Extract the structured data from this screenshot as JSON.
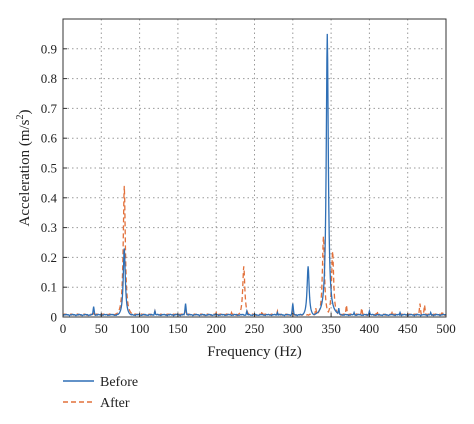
{
  "chart_data": {
    "type": "line",
    "xlabel": "Frequency (Hz)",
    "ylabel": "Acceleration (m/s",
    "ylabel_sup": "2",
    "ylabel_close": ")",
    "xlim": [
      0,
      500
    ],
    "ylim": [
      0,
      1.0
    ],
    "x_ticks": [
      0,
      50,
      100,
      150,
      200,
      250,
      300,
      350,
      400,
      450,
      500
    ],
    "y_ticks": [
      0,
      0.1,
      0.2,
      0.3,
      0.4,
      0.5,
      0.6,
      0.7,
      0.8,
      0.9
    ],
    "y_tick_labels": [
      "0",
      "0.1",
      "0.2",
      "0.3",
      "0.4",
      "0.5",
      "0.6",
      "0.7",
      "0.8",
      "0.9"
    ],
    "grid": true,
    "legend_position": "bottom-left, below plot",
    "series": [
      {
        "name": "Before",
        "color": "#2f6fb5",
        "style": "solid",
        "peaks": [
          {
            "f": 40,
            "a": 0.035
          },
          {
            "f": 80,
            "a": 0.23
          },
          {
            "f": 120,
            "a": 0.02
          },
          {
            "f": 160,
            "a": 0.045
          },
          {
            "f": 240,
            "a": 0.02
          },
          {
            "f": 280,
            "a": 0.015
          },
          {
            "f": 300,
            "a": 0.045
          },
          {
            "f": 320,
            "a": 0.17
          },
          {
            "f": 340,
            "a": 0.05
          },
          {
            "f": 345,
            "a": 0.95
          },
          {
            "f": 360,
            "a": 0.03
          },
          {
            "f": 380,
            "a": 0.015
          },
          {
            "f": 400,
            "a": 0.02
          },
          {
            "f": 440,
            "a": 0.015
          },
          {
            "f": 480,
            "a": 0.015
          }
        ]
      },
      {
        "name": "After",
        "color": "#e2703a",
        "style": "dashed",
        "peaks": [
          {
            "f": 40,
            "a": 0.02
          },
          {
            "f": 80,
            "a": 0.44
          },
          {
            "f": 120,
            "a": 0.02
          },
          {
            "f": 160,
            "a": 0.025
          },
          {
            "f": 200,
            "a": 0.015
          },
          {
            "f": 220,
            "a": 0.015
          },
          {
            "f": 236,
            "a": 0.17
          },
          {
            "f": 260,
            "a": 0.02
          },
          {
            "f": 280,
            "a": 0.02
          },
          {
            "f": 300,
            "a": 0.025
          },
          {
            "f": 330,
            "a": 0.03
          },
          {
            "f": 340,
            "a": 0.27
          },
          {
            "f": 352,
            "a": 0.22
          },
          {
            "f": 370,
            "a": 0.04
          },
          {
            "f": 390,
            "a": 0.03
          },
          {
            "f": 410,
            "a": 0.02
          },
          {
            "f": 430,
            "a": 0.02
          },
          {
            "f": 466,
            "a": 0.045
          },
          {
            "f": 472,
            "a": 0.04
          },
          {
            "f": 495,
            "a": 0.02
          }
        ]
      }
    ]
  }
}
